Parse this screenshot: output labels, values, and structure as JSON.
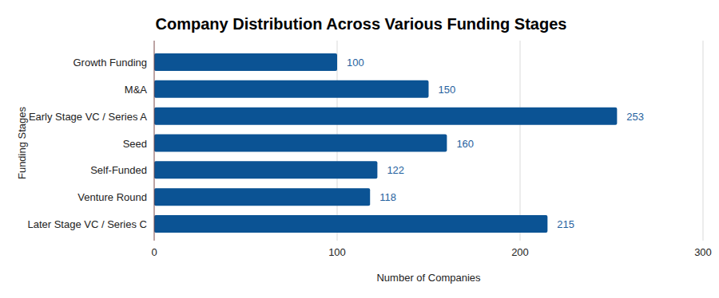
{
  "chart_data": {
    "type": "bar",
    "orientation": "horizontal",
    "title": "Company Distribution Across Various Funding Stages",
    "x_label": "Number of Companies",
    "y_label": "Funding Stages",
    "categories": [
      "Growth Funding",
      "M&A",
      "Early Stage VC / Series A",
      "Seed",
      "Self-Funded",
      "Venture Round",
      "Later Stage VC / Series C"
    ],
    "values": [
      100,
      150,
      253,
      160,
      122,
      118,
      215
    ],
    "color": "#0b5394",
    "xlim": [
      0,
      300
    ],
    "xticks": [
      0,
      100,
      200,
      300
    ],
    "grid": true,
    "data_labels": true
  }
}
